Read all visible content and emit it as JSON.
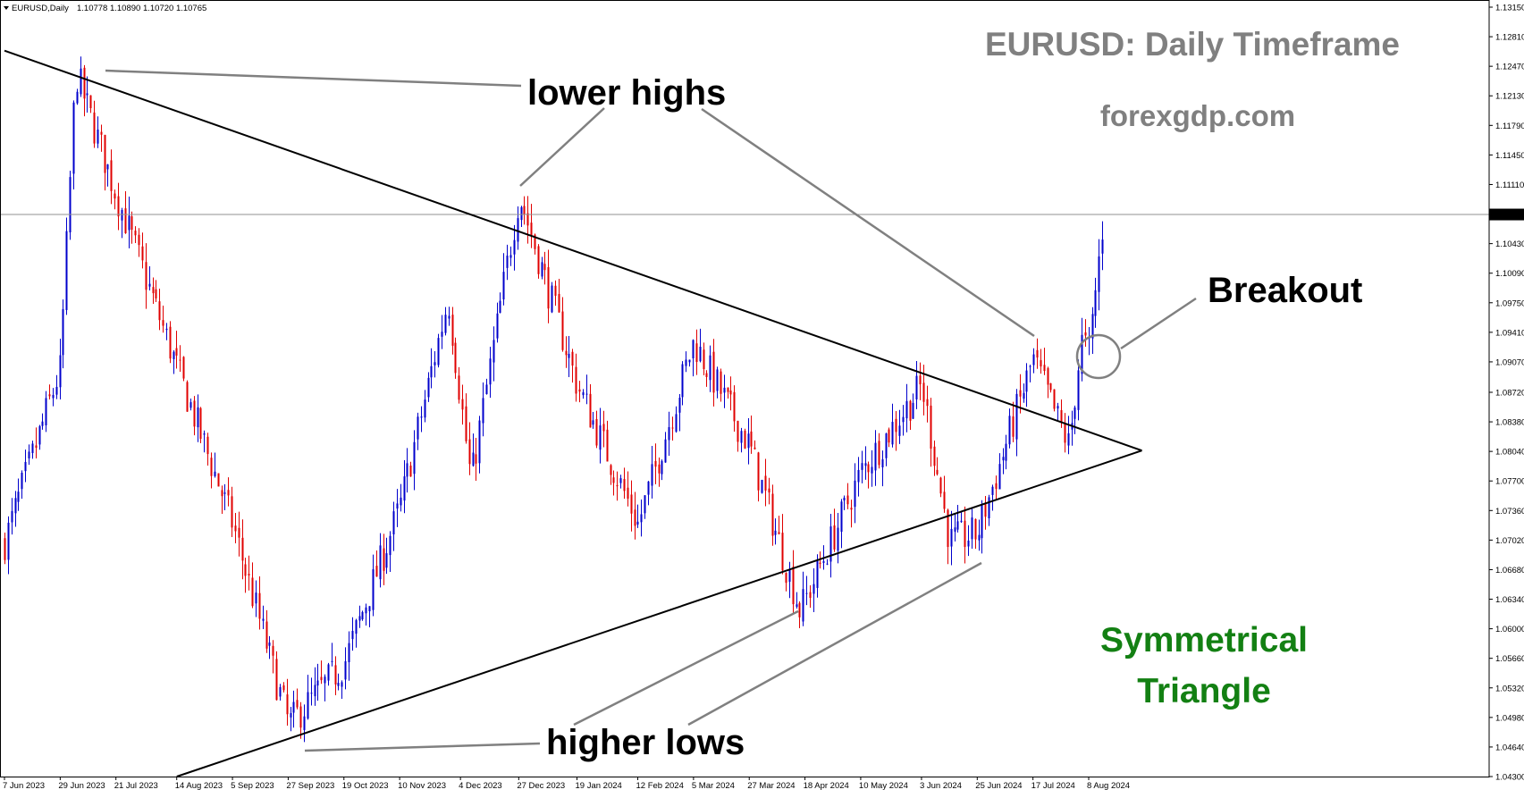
{
  "header": {
    "symbol": "EURUSD,Daily",
    "ohlc": "1.10778 1.10890 1.10720 1.10765"
  },
  "annotations": {
    "title": "EURUSD: Daily Timeframe",
    "website": "forexgdp.com",
    "lower_highs": "lower highs",
    "higher_lows": "higher lows",
    "breakout": "Breakout",
    "pattern_line1": "Symmetrical",
    "pattern_line2": "Triangle"
  },
  "colors": {
    "bull_candle": "#0000cc",
    "bear_candle": "#e00000",
    "title_gray": "#808080",
    "pattern_green": "#138013",
    "trendline": "#000000",
    "pointer_gray": "#808080",
    "background": "#ffffff"
  },
  "chart_data": {
    "type": "candlestick",
    "symbol": "EURUSD",
    "timeframe": "Daily",
    "current_price": 1.10765,
    "current_price_label": "1.10765",
    "ylim": [
      1.043,
      1.1315
    ],
    "y_ticks": [
      "1.13150",
      "1.12810",
      "1.12470",
      "1.12130",
      "1.11790",
      "1.11450",
      "1.11110",
      "1.10430",
      "1.10090",
      "1.09750",
      "1.09410",
      "1.09070",
      "1.08720",
      "1.08380",
      "1.08040",
      "1.07700",
      "1.07360",
      "1.07020",
      "1.06680",
      "1.06340",
      "1.06000",
      "1.05660",
      "1.05320",
      "1.04980",
      "1.04640",
      "1.04300"
    ],
    "x_ticks": [
      "7 Jun 2023",
      "29 Jun 2023",
      "21 Jul 2023",
      "14 Aug 2023",
      "5 Sep 2023",
      "27 Sep 2023",
      "19 Oct 2023",
      "10 Nov 2023",
      "4 Dec 2023",
      "27 Dec 2023",
      "19 Jan 2024",
      "12 Feb 2024",
      "5 Mar 2024",
      "27 Mar 2024",
      "18 Apr 2024",
      "10 May 2024",
      "3 Jun 2024",
      "25 Jun 2024",
      "17 Jul 2024",
      "8 Aug 2024"
    ],
    "price_series": [
      [
        "7 Jun 2023",
        1.07
      ],
      [
        "29 Jun 2023",
        1.09
      ],
      [
        "5 Jul 2023",
        1.124
      ],
      [
        "21 Jul 2023",
        1.11
      ],
      [
        "14 Aug 2023",
        1.09
      ],
      [
        "5 Sep 2023",
        1.072
      ],
      [
        "27 Sep 2023",
        1.049
      ],
      [
        "19 Oct 2023",
        1.056
      ],
      [
        "10 Nov 2023",
        1.074
      ],
      [
        "29 Nov 2023",
        1.098
      ],
      [
        "8 Dec 2023",
        1.077
      ],
      [
        "27 Dec 2023",
        1.11
      ],
      [
        "19 Jan 2024",
        1.088
      ],
      [
        "12 Feb 2024",
        1.072
      ],
      [
        "5 Mar 2024",
        1.093
      ],
      [
        "27 Mar 2024",
        1.081
      ],
      [
        "16 Apr 2024",
        1.062
      ],
      [
        "10 May 2024",
        1.078
      ],
      [
        "3 Jun 2024",
        1.088
      ],
      [
        "14 Jun 2024",
        1.07
      ],
      [
        "25 Jun 2024",
        1.071
      ],
      [
        "17 Jul 2024",
        1.091
      ],
      [
        "31 Jul 2024",
        1.081
      ],
      [
        "5 Aug 2024",
        1.093
      ],
      [
        "8 Aug 2024",
        1.092
      ],
      [
        "14 Aug 2024",
        1.1077
      ]
    ],
    "trendlines": [
      {
        "name": "upper",
        "from": [
          "7 Jun 2023",
          1.1265
        ],
        "to": [
          "29 Aug 2024",
          1.0805
        ]
      },
      {
        "name": "lower",
        "from": [
          "14 Aug 2023",
          1.043
        ],
        "to": [
          "29 Aug 2024",
          1.0805
        ]
      }
    ],
    "grid": false,
    "legend": "none"
  }
}
